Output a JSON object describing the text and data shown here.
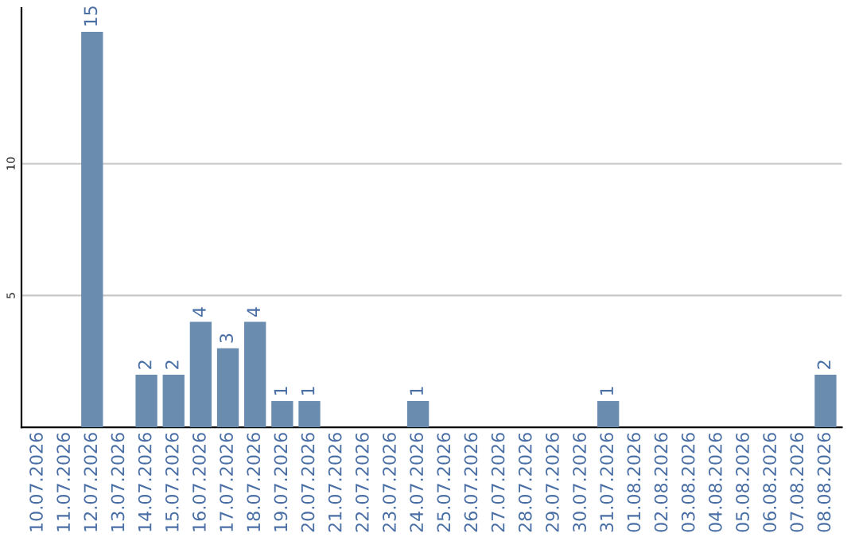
{
  "chart_data": {
    "type": "bar",
    "categories": [
      "10.07.2026",
      "11.07.2026",
      "12.07.2026",
      "13.07.2026",
      "14.07.2026",
      "15.07.2026",
      "16.07.2026",
      "17.07.2026",
      "18.07.2026",
      "19.07.2026",
      "20.07.2026",
      "21.07.2026",
      "22.07.2026",
      "23.07.2026",
      "24.07.2026",
      "25.07.2026",
      "26.07.2026",
      "27.07.2026",
      "28.07.2026",
      "29.07.2026",
      "30.07.2026",
      "31.07.2026",
      "01.08.2026",
      "02.08.2026",
      "03.08.2026",
      "04.08.2026",
      "05.08.2026",
      "06.08.2026",
      "07.08.2026",
      "08.08.2026"
    ],
    "values": [
      0,
      0,
      15,
      0,
      2,
      2,
      4,
      3,
      4,
      1,
      1,
      0,
      0,
      0,
      1,
      0,
      0,
      0,
      0,
      0,
      0,
      1,
      0,
      0,
      0,
      0,
      0,
      0,
      0,
      2
    ],
    "value_labels": [
      null,
      null,
      "15",
      null,
      "2",
      "2",
      "4",
      "3",
      "4",
      "1",
      "1",
      null,
      null,
      null,
      "1",
      null,
      null,
      null,
      null,
      null,
      null,
      "1",
      null,
      null,
      null,
      null,
      null,
      null,
      null,
      "2"
    ],
    "color": "#6a8caf",
    "ylim": [
      0,
      15.9
    ],
    "yticks": [
      5,
      10
    ],
    "grid": "y"
  }
}
